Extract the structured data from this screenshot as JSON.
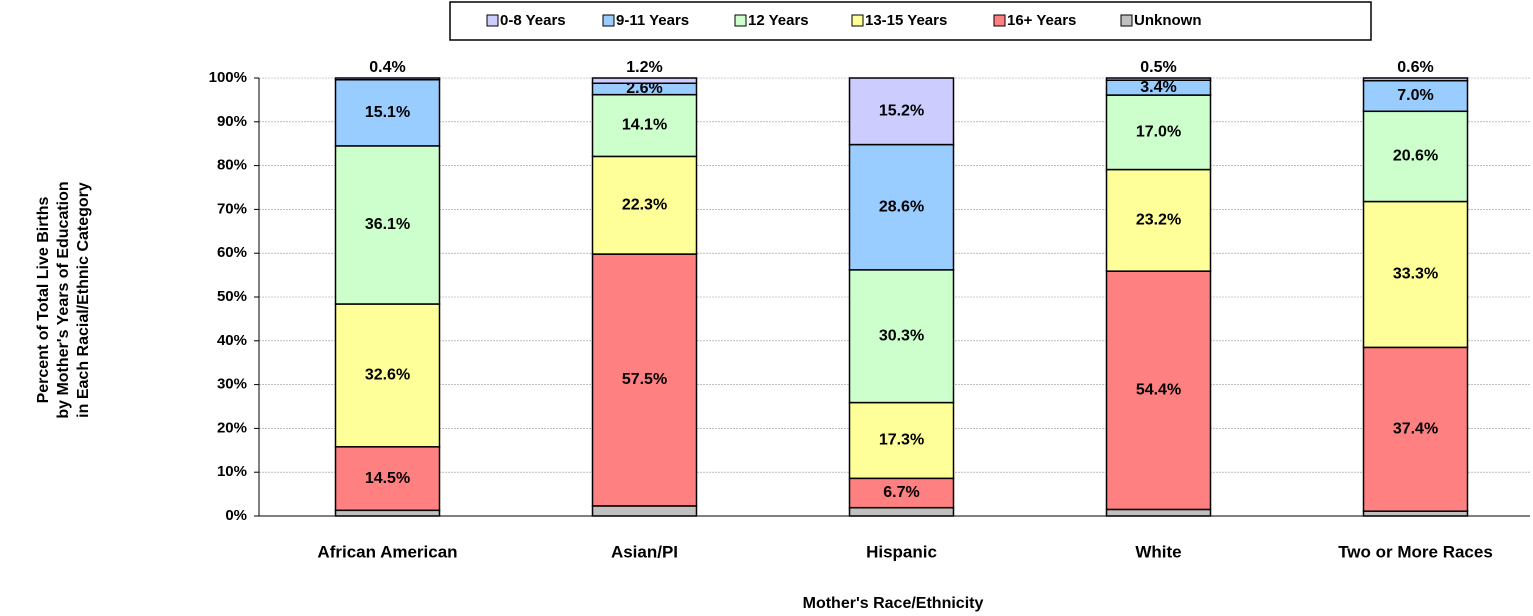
{
  "chart_data": {
    "type": "stacked_bar",
    "ylabel": [
      "Percent of Total Live Births",
      "by Mother's Years of Education",
      "in Each Racial/Ethnic Category"
    ],
    "xlabel": "Mother's Race/Ethnicity",
    "categories": [
      "African American",
      "Asian/PI",
      "Hispanic",
      "White",
      "Two or More Races"
    ],
    "ylim": [
      0,
      100
    ],
    "yticks": [
      {
        "value": 0,
        "label": "0%"
      },
      {
        "value": 10,
        "label": "10%"
      },
      {
        "value": 20,
        "label": "20%"
      },
      {
        "value": 30,
        "label": "30%"
      },
      {
        "value": 40,
        "label": "40%"
      },
      {
        "value": 50,
        "label": "50%"
      },
      {
        "value": 60,
        "label": "60%"
      },
      {
        "value": 70,
        "label": "70%"
      },
      {
        "value": 80,
        "label": "80%"
      },
      {
        "value": 90,
        "label": "90%"
      },
      {
        "value": 100,
        "label": "100%"
      }
    ],
    "grid": true,
    "legend": "top",
    "series": [
      {
        "name": "0-8 Years",
        "color": "#ccccff",
        "values": [
          0.4,
          1.2,
          15.2,
          0.5,
          0.6
        ],
        "value_labels": [
          "0.4%",
          "1.2%",
          "15.2%",
          "0.5%",
          "0.6%"
        ]
      },
      {
        "name": "9-11 Years",
        "color": "#99ccff",
        "values": [
          15.1,
          2.6,
          28.6,
          3.4,
          7.0
        ],
        "value_labels": [
          "15.1%",
          "2.6%",
          "28.6%",
          "3.4%",
          "7.0%"
        ]
      },
      {
        "name": "12 Years",
        "color": "#ccffcc",
        "values": [
          36.1,
          14.1,
          30.3,
          17.0,
          20.6
        ],
        "value_labels": [
          "36.1%",
          "14.1%",
          "30.3%",
          "17.0%",
          "20.6%"
        ]
      },
      {
        "name": "13-15 Years",
        "color": "#ffff99",
        "values": [
          32.6,
          22.3,
          17.3,
          23.2,
          33.3
        ],
        "value_labels": [
          "32.6%",
          "22.3%",
          "17.3%",
          "23.2%",
          "33.3%"
        ]
      },
      {
        "name": "16+ Years",
        "color": "#ff8080",
        "values": [
          14.5,
          57.5,
          6.7,
          54.4,
          37.4
        ],
        "value_labels": [
          "14.5%",
          "57.5%",
          "6.7%",
          "54.4%",
          "37.4%"
        ]
      },
      {
        "name": "Unknown",
        "color": "#c0c0c0",
        "values": [
          1.3,
          2.3,
          1.9,
          1.5,
          1.1
        ]
      }
    ]
  }
}
